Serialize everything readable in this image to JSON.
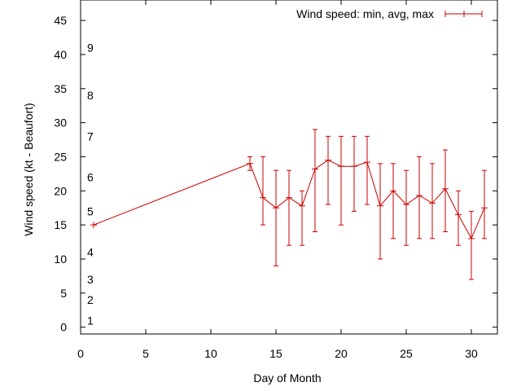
{
  "chart_data": {
    "type": "line",
    "xlabel": "Day of Month",
    "ylabel": "Wind speed (kt - Beaufort)",
    "xlim": [
      0,
      32
    ],
    "ylim": [
      -1,
      48
    ],
    "xticks": [
      0,
      5,
      10,
      15,
      20,
      25,
      30
    ],
    "yticks": [
      0,
      5,
      10,
      15,
      20,
      25,
      30,
      35,
      40,
      45
    ],
    "legend_position": "top-right",
    "grid": false,
    "line_color": "#cc0000",
    "series": [
      {
        "name": "Wind speed: min, avg, max",
        "style": "line with min-max error bars",
        "points": [
          {
            "x": 1,
            "avg": 15.0,
            "min": 15,
            "max": 15
          },
          {
            "x": 13,
            "avg": 24.0,
            "min": 23,
            "max": 25
          },
          {
            "x": 14,
            "avg": 19.0,
            "min": 15,
            "max": 25
          },
          {
            "x": 15,
            "avg": 17.5,
            "min": 9,
            "max": 23
          },
          {
            "x": 16,
            "avg": 19.0,
            "min": 12,
            "max": 23
          },
          {
            "x": 17,
            "avg": 17.8,
            "min": 12,
            "max": 20
          },
          {
            "x": 18,
            "avg": 23.2,
            "min": 14,
            "max": 29
          },
          {
            "x": 19,
            "avg": 24.5,
            "min": 18,
            "max": 28
          },
          {
            "x": 20,
            "avg": 23.6,
            "min": 15,
            "max": 28
          },
          {
            "x": 21,
            "avg": 23.6,
            "min": 17,
            "max": 28
          },
          {
            "x": 22,
            "avg": 24.2,
            "min": 18,
            "max": 28
          },
          {
            "x": 23,
            "avg": 17.8,
            "min": 10,
            "max": 24
          },
          {
            "x": 24,
            "avg": 20.0,
            "min": 13,
            "max": 24
          },
          {
            "x": 25,
            "avg": 18.0,
            "min": 12,
            "max": 23
          },
          {
            "x": 26,
            "avg": 19.3,
            "min": 13,
            "max": 25
          },
          {
            "x": 27,
            "avg": 18.2,
            "min": 13,
            "max": 24
          },
          {
            "x": 28,
            "avg": 20.3,
            "min": 14,
            "max": 26
          },
          {
            "x": 29,
            "avg": 16.5,
            "min": 12,
            "max": 20
          },
          {
            "x": 30,
            "avg": 13.0,
            "min": 7,
            "max": 17
          },
          {
            "x": 31,
            "avg": 17.5,
            "min": 13,
            "max": 23
          }
        ]
      }
    ],
    "beaufort_labels": [
      {
        "label": "1",
        "y": 1
      },
      {
        "label": "2",
        "y": 4
      },
      {
        "label": "3",
        "y": 7
      },
      {
        "label": "4",
        "y": 11
      },
      {
        "label": "5",
        "y": 17
      },
      {
        "label": "6",
        "y": 22
      },
      {
        "label": "7",
        "y": 28
      },
      {
        "label": "8",
        "y": 34
      },
      {
        "label": "9",
        "y": 41
      }
    ]
  }
}
